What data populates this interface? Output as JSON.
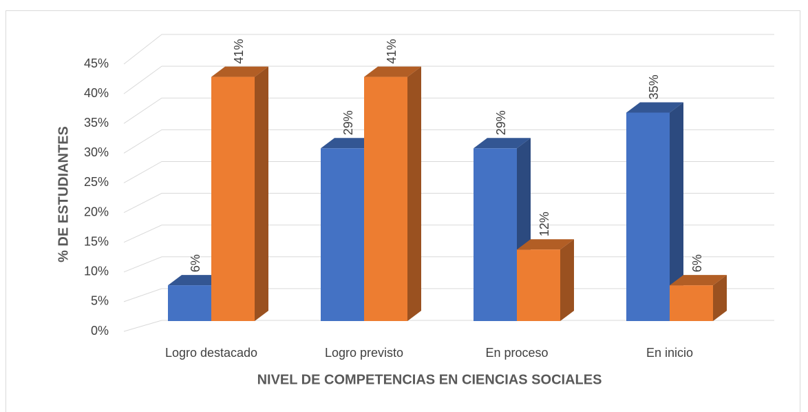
{
  "chart_data": {
    "type": "bar3d",
    "x_label": "NIVEL DE COMPETENCIAS EN CIENCIAS SOCIALES",
    "y_label": "% DE ESTUDIANTES",
    "categories": [
      "Logro destacado",
      "Logro previsto",
      "En proceso",
      "En inicio"
    ],
    "series": [
      {
        "color": "#4472c4",
        "values": [
          6,
          29,
          29,
          35
        ],
        "value_labels": [
          "6%",
          "29%",
          "29%",
          "35%"
        ]
      },
      {
        "color": "#ed7d31",
        "values": [
          41,
          41,
          12,
          6
        ],
        "value_labels": [
          "41%",
          "41%",
          "12%",
          "6%"
        ]
      }
    ],
    "ylim": [
      0,
      45
    ],
    "yticks": [
      {
        "value": 0,
        "label": "0%"
      },
      {
        "value": 5,
        "label": "5%"
      },
      {
        "value": 10,
        "label": "10%"
      },
      {
        "value": 15,
        "label": "15%"
      },
      {
        "value": 20,
        "label": "20%"
      },
      {
        "value": 25,
        "label": "25%"
      },
      {
        "value": 30,
        "label": "30%"
      },
      {
        "value": 35,
        "label": "35%"
      },
      {
        "value": 40,
        "label": "40%"
      },
      {
        "value": 45,
        "label": "45%"
      }
    ],
    "grid": true
  }
}
